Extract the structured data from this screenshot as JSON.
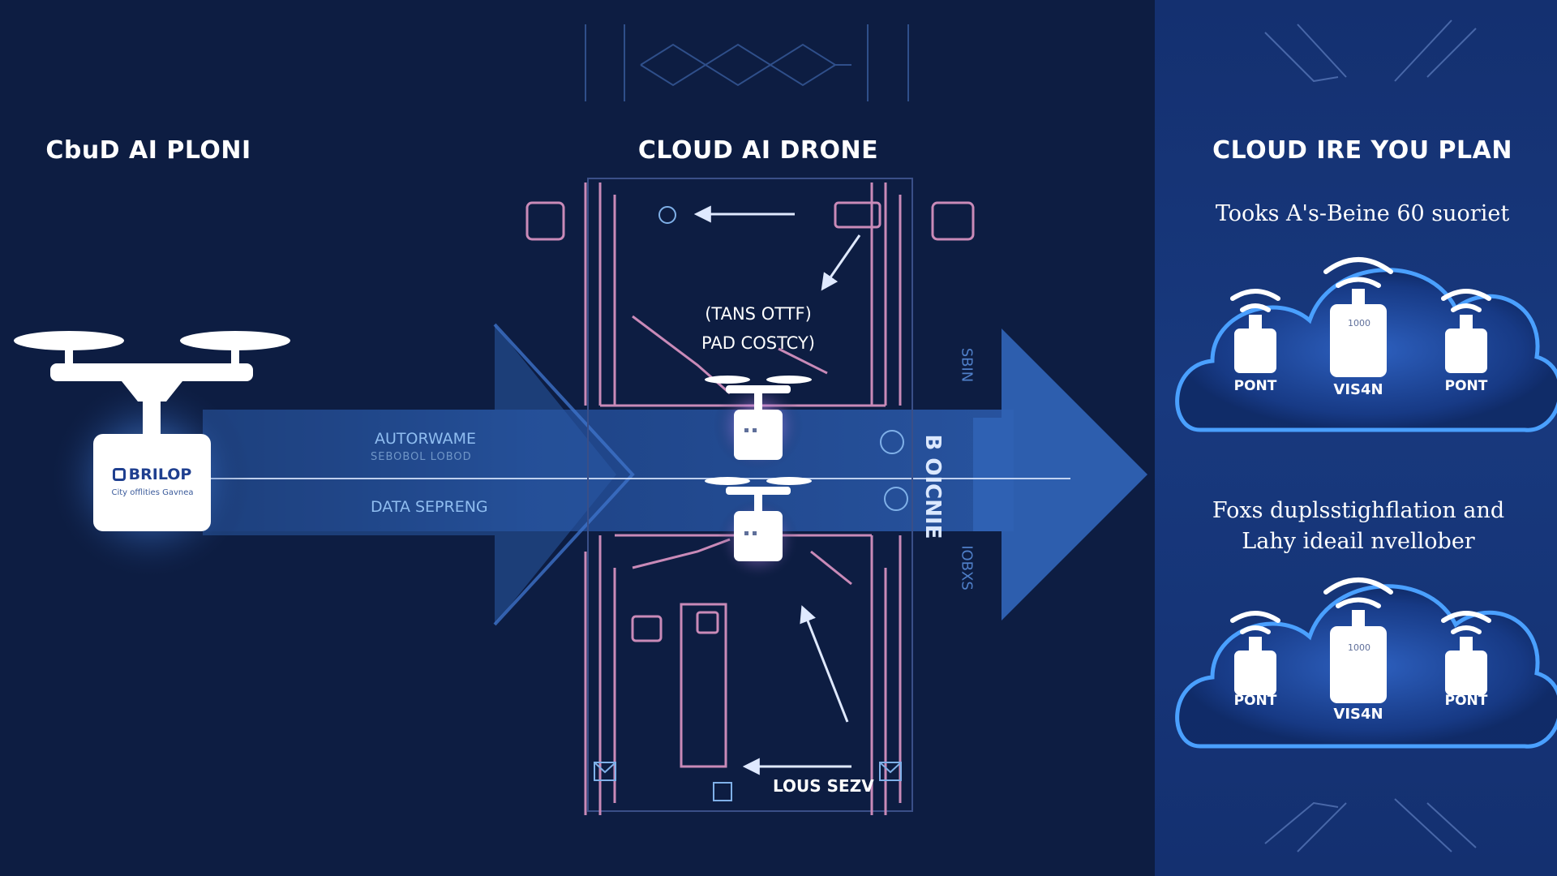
{
  "titles": {
    "left": "CbuD AI PLONI",
    "center": "CLOUD AI DRONE",
    "right": "CLOUD IRE YOU PLAN"
  },
  "drone_box": {
    "brand": "BRILOP",
    "subtitle": "City offlities Gavnea"
  },
  "flow": {
    "label_top": "AUTORWAME",
    "label_top_sub": "SEBOBOL LOBOD",
    "label_bottom": "DATA SEPRENG",
    "vertical_main": "B OICNIE",
    "vertical_side_top": "SBIN",
    "vertical_side_bottom": "IOBXS"
  },
  "center": {
    "caption_line1": "(TANS OTTF)",
    "caption_line2": "PAD COSTCY)",
    "bottom_label": "LOUS SEZV"
  },
  "right": {
    "subtext_top": "Tooks A's-Beine 60 suoriet",
    "subtext_bottom_line1": "Foxs duplsstighflation and",
    "subtext_bottom_line2": "Lahy ideail nvellober",
    "cloud_top": {
      "left": "PONT",
      "center": "VIS4N",
      "right": "PONT",
      "device_text": "1000"
    },
    "cloud_bottom": {
      "left": "PONT",
      "center": "VIS4N",
      "right": "PONT",
      "device_text": "1000"
    }
  },
  "colors": {
    "background": "#0d1d42",
    "panel": "#163574",
    "arrow": "#2a5aa6",
    "circuit_pink": "#c98ab8",
    "glow": "#9fd2ff",
    "cloud_glow": "#3f8ef0"
  }
}
